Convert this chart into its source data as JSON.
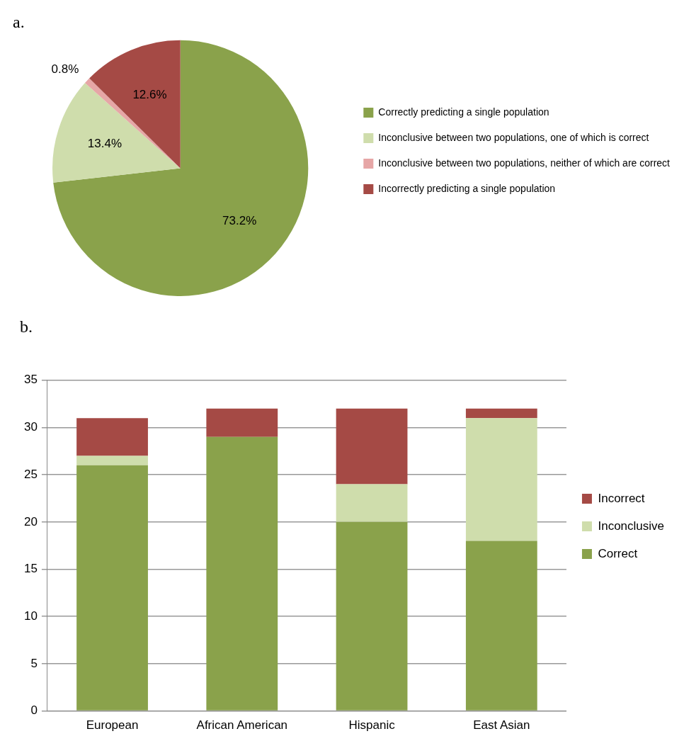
{
  "chart_data": [
    {
      "type": "pie",
      "title": "a.",
      "categories": [
        "Correctly predicting a single population",
        "Inconclusive between two populations, one of which is correct",
        "Inconclusive between two populations, neither of which are correct",
        "Incorrectly predicting a single population"
      ],
      "values": [
        73.2,
        13.4,
        0.8,
        12.6
      ],
      "colors": [
        "#8aa24b",
        "#cfddac",
        "#e6a6a6",
        "#a54a45"
      ],
      "value_labels": [
        "73.2%",
        "13.4%",
        "0.8%",
        "12.6%"
      ],
      "legend": "right"
    },
    {
      "type": "bar",
      "title": "b.",
      "categories": [
        "European",
        "African American",
        "Hispanic",
        "East Asian"
      ],
      "stacked": true,
      "series": [
        {
          "name": "Correct",
          "color": "#8aa24b",
          "values": [
            26,
            29,
            20,
            18
          ]
        },
        {
          "name": "Inconclusive",
          "color": "#cfddac",
          "values": [
            1,
            0,
            4,
            13
          ]
        },
        {
          "name": "Incorrect",
          "color": "#a54a45",
          "values": [
            4,
            3,
            8,
            1
          ]
        }
      ],
      "ylim": [
        0,
        35
      ],
      "yticks": [
        0,
        5,
        10,
        15,
        20,
        25,
        30,
        35
      ],
      "grid": "y",
      "legend": "right"
    }
  ]
}
